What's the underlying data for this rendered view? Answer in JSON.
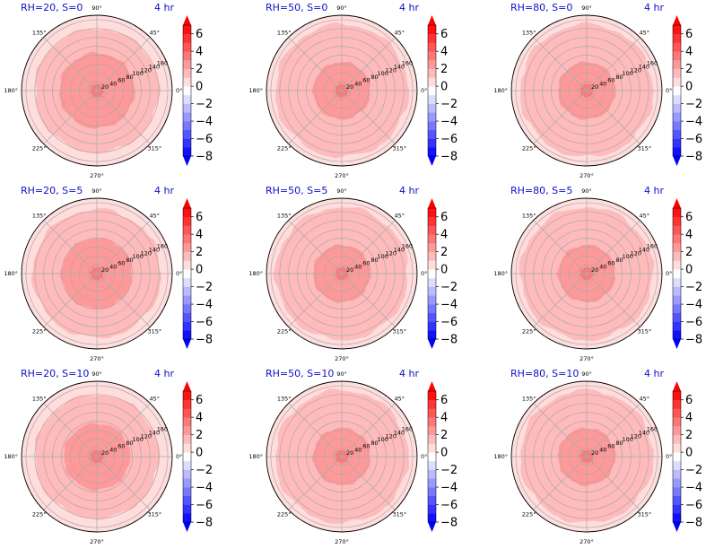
{
  "chart_data": [
    {
      "type": "heatmap",
      "projection": "polar",
      "title_left": "RH=20, S=0",
      "title_right": "4 hr",
      "radial_ticks": [
        20,
        40,
        60,
        80,
        100,
        120,
        140,
        160
      ],
      "angle_ticks": [
        "0°",
        "45°",
        "90°",
        "135°",
        "180°",
        "225°",
        "270°",
        "315°"
      ],
      "levels": {
        "inner_zone": {
          "radius": [
            0,
            15
          ],
          "value": 3
        },
        "mid_zone": {
          "radius": [
            15,
            85
          ],
          "value": 2
        },
        "outer_zone": {
          "radius": [
            85,
            140
          ],
          "value": 1.3
        },
        "background": {
          "radius": [
            140,
            170
          ],
          "value": 0.7
        }
      },
      "colorbar": {
        "ticks": [
          6,
          4,
          2,
          0,
          -2,
          -4,
          -6,
          -8
        ],
        "vmin": -8,
        "vmax": 7,
        "cmap": "bwr",
        "extend": "both"
      }
    },
    {
      "type": "heatmap",
      "projection": "polar",
      "title_left": "RH=50, S=0",
      "title_right": "4 hr",
      "radial_ticks": [
        20,
        40,
        60,
        80,
        100,
        120,
        140,
        160
      ],
      "angle_ticks": [
        "0°",
        "45°",
        "90°",
        "135°",
        "180°",
        "225°",
        "270°",
        "315°"
      ],
      "levels": {
        "inner_zone": {
          "radius": [
            0,
            15
          ],
          "value": 3
        },
        "mid_zone": {
          "radius": [
            15,
            65
          ],
          "value": 2
        },
        "outer_zone": {
          "radius": [
            65,
            150
          ],
          "value": 1.3
        },
        "background": {
          "radius": [
            150,
            170
          ],
          "value": 0.7
        }
      },
      "colorbar": {
        "ticks": [
          6,
          4,
          2,
          0,
          -2,
          -4,
          -6,
          -8
        ],
        "vmin": -8,
        "vmax": 7,
        "cmap": "bwr",
        "extend": "both"
      }
    },
    {
      "type": "heatmap",
      "projection": "polar",
      "title_left": "RH=80, S=0",
      "title_right": "4 hr",
      "radial_ticks": [
        20,
        40,
        60,
        80,
        100,
        120,
        140,
        160
      ],
      "angle_ticks": [
        "0°",
        "45°",
        "90°",
        "135°",
        "180°",
        "225°",
        "270°",
        "315°"
      ],
      "levels": {
        "inner_zone": {
          "radius": [
            0,
            15
          ],
          "value": 3
        },
        "mid_zone": {
          "radius": [
            15,
            65
          ],
          "value": 2
        },
        "outer_zone": {
          "radius": [
            65,
            150
          ],
          "value": 1.3
        },
        "background": {
          "radius": [
            150,
            170
          ],
          "value": 0.7
        }
      },
      "colorbar": {
        "ticks": [
          6,
          4,
          2,
          0,
          -2,
          -4,
          -6,
          -8
        ],
        "vmin": -8,
        "vmax": 7,
        "cmap": "bwr",
        "extend": "both"
      }
    },
    {
      "type": "heatmap",
      "projection": "polar",
      "title_left": "RH=20, S=5",
      "title_right": "4 hr",
      "radial_ticks": [
        20,
        40,
        60,
        80,
        100,
        120,
        140,
        160
      ],
      "angle_ticks": [
        "0°",
        "45°",
        "90°",
        "135°",
        "180°",
        "225°",
        "270°",
        "315°"
      ],
      "levels": {
        "inner_zone": {
          "radius": [
            0,
            15
          ],
          "value": 3
        },
        "mid_zone": {
          "radius": [
            15,
            80
          ],
          "value": 2
        },
        "outer_zone": {
          "radius": [
            80,
            145
          ],
          "value": 1.3
        },
        "background": {
          "radius": [
            145,
            170
          ],
          "value": 0.7
        }
      },
      "colorbar": {
        "ticks": [
          6,
          4,
          2,
          0,
          -2,
          -4,
          -6,
          -8
        ],
        "vmin": -8,
        "vmax": 7,
        "cmap": "bwr",
        "extend": "both"
      }
    },
    {
      "type": "heatmap",
      "projection": "polar",
      "title_left": "RH=50, S=5",
      "title_right": "4 hr",
      "radial_ticks": [
        20,
        40,
        60,
        80,
        100,
        120,
        140,
        160
      ],
      "angle_ticks": [
        "0°",
        "45°",
        "90°",
        "135°",
        "180°",
        "225°",
        "270°",
        "315°"
      ],
      "levels": {
        "inner_zone": {
          "radius": [
            0,
            15
          ],
          "value": 3
        },
        "mid_zone": {
          "radius": [
            15,
            65
          ],
          "value": 2
        },
        "outer_zone": {
          "radius": [
            65,
            150
          ],
          "value": 1.3
        },
        "background": {
          "radius": [
            150,
            170
          ],
          "value": 0.7
        }
      },
      "colorbar": {
        "ticks": [
          6,
          4,
          2,
          0,
          -2,
          -4,
          -6,
          -8
        ],
        "vmin": -8,
        "vmax": 7,
        "cmap": "bwr",
        "extend": "both"
      }
    },
    {
      "type": "heatmap",
      "projection": "polar",
      "title_left": "RH=80, S=5",
      "title_right": "4 hr",
      "radial_ticks": [
        20,
        40,
        60,
        80,
        100,
        120,
        140,
        160
      ],
      "angle_ticks": [
        "0°",
        "45°",
        "90°",
        "135°",
        "180°",
        "225°",
        "270°",
        "315°"
      ],
      "levels": {
        "inner_zone": {
          "radius": [
            0,
            15
          ],
          "value": 3
        },
        "mid_zone": {
          "radius": [
            15,
            65
          ],
          "value": 2
        },
        "outer_zone": {
          "radius": [
            65,
            150
          ],
          "value": 1.3
        },
        "background": {
          "radius": [
            150,
            170
          ],
          "value": 0.7
        }
      },
      "colorbar": {
        "ticks": [
          6,
          4,
          2,
          0,
          -2,
          -4,
          -6,
          -8
        ],
        "vmin": -8,
        "vmax": 7,
        "cmap": "bwr",
        "extend": "both"
      }
    },
    {
      "type": "heatmap",
      "projection": "polar",
      "title_left": "RH=20, S=10",
      "title_right": "4 hr",
      "radial_ticks": [
        20,
        40,
        60,
        80,
        100,
        120,
        140,
        160
      ],
      "angle_ticks": [
        "0°",
        "45°",
        "90°",
        "135°",
        "180°",
        "225°",
        "270°",
        "315°"
      ],
      "levels": {
        "inner_zone": {
          "radius": [
            0,
            15
          ],
          "value": 3
        },
        "mid_zone": {
          "radius": [
            15,
            75
          ],
          "value": 2
        },
        "outer_zone": {
          "radius": [
            75,
            140
          ],
          "value": 1.3
        },
        "background": {
          "radius": [
            140,
            170
          ],
          "value": 0.7
        }
      },
      "colorbar": {
        "ticks": [
          6,
          4,
          2,
          0,
          -2,
          -4,
          -6,
          -8
        ],
        "vmin": -8,
        "vmax": 7,
        "cmap": "bwr",
        "extend": "both"
      }
    },
    {
      "type": "heatmap",
      "projection": "polar",
      "title_left": "RH=50, S=10",
      "title_right": "4 hr",
      "radial_ticks": [
        20,
        40,
        60,
        80,
        100,
        120,
        140,
        160
      ],
      "angle_ticks": [
        "0°",
        "45°",
        "90°",
        "135°",
        "180°",
        "225°",
        "270°",
        "315°"
      ],
      "levels": {
        "inner_zone": {
          "radius": [
            0,
            15
          ],
          "value": 3
        },
        "mid_zone": {
          "radius": [
            15,
            65
          ],
          "value": 2
        },
        "outer_zone": {
          "radius": [
            65,
            150
          ],
          "value": 1.3
        },
        "background": {
          "radius": [
            150,
            170
          ],
          "value": 0.7
        }
      },
      "colorbar": {
        "ticks": [
          6,
          4,
          2,
          0,
          -2,
          -4,
          -6,
          -8
        ],
        "vmin": -8,
        "vmax": 7,
        "cmap": "bwr",
        "extend": "both"
      }
    },
    {
      "type": "heatmap",
      "projection": "polar",
      "title_left": "RH=80, S=10",
      "title_right": "4 hr",
      "radial_ticks": [
        20,
        40,
        60,
        80,
        100,
        120,
        140,
        160
      ],
      "angle_ticks": [
        "0°",
        "45°",
        "90°",
        "135°",
        "180°",
        "225°",
        "270°",
        "315°"
      ],
      "levels": {
        "inner_zone": {
          "radius": [
            0,
            15
          ],
          "value": 3
        },
        "mid_zone": {
          "radius": [
            15,
            65
          ],
          "value": 2
        },
        "outer_zone": {
          "radius": [
            65,
            150
          ],
          "value": 1.3
        },
        "background": {
          "radius": [
            150,
            170
          ],
          "value": 0.7
        }
      },
      "colorbar": {
        "ticks": [
          6,
          4,
          2,
          0,
          -2,
          -4,
          -6,
          -8
        ],
        "vmin": -8,
        "vmax": 7,
        "cmap": "bwr",
        "extend": "both"
      }
    }
  ]
}
